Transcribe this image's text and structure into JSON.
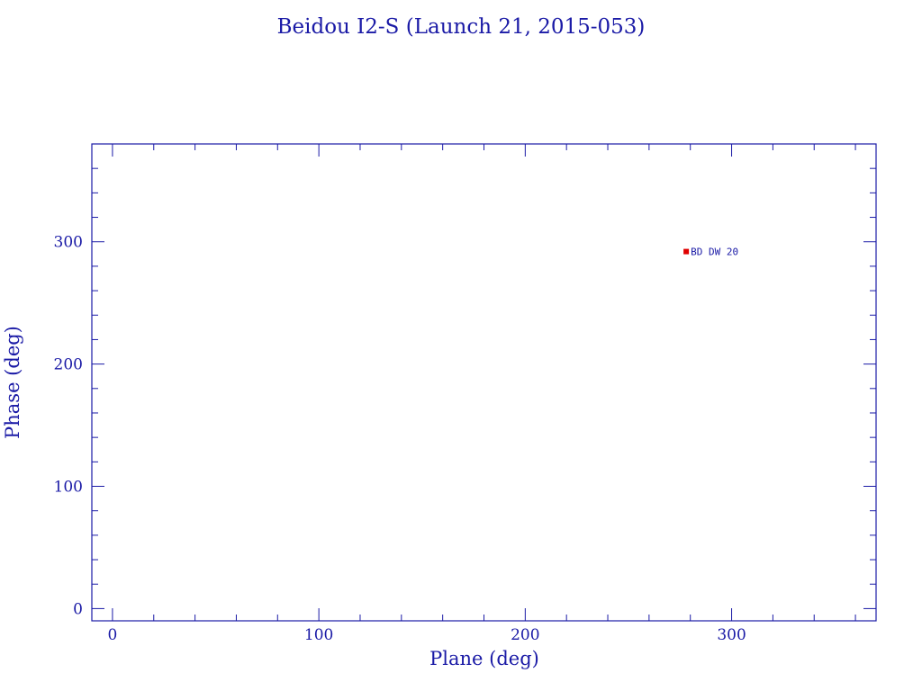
{
  "chart_data": {
    "type": "scatter",
    "title": "Beidou I2-S (Launch 21, 2015-053)",
    "xlabel": "Plane (deg)",
    "ylabel": "Phase (deg)",
    "xlim": [
      -10,
      370
    ],
    "ylim": [
      -10,
      380
    ],
    "xticks": [
      "0",
      "100",
      "200",
      "300"
    ],
    "yticks": [
      "0",
      "100",
      "200",
      "300"
    ],
    "grid": false,
    "points": [
      {
        "x": 278,
        "y": 292,
        "label": "BD DW 20"
      }
    ],
    "colors": {
      "axes": "#1a1aa6",
      "marker": "#e00000"
    }
  }
}
